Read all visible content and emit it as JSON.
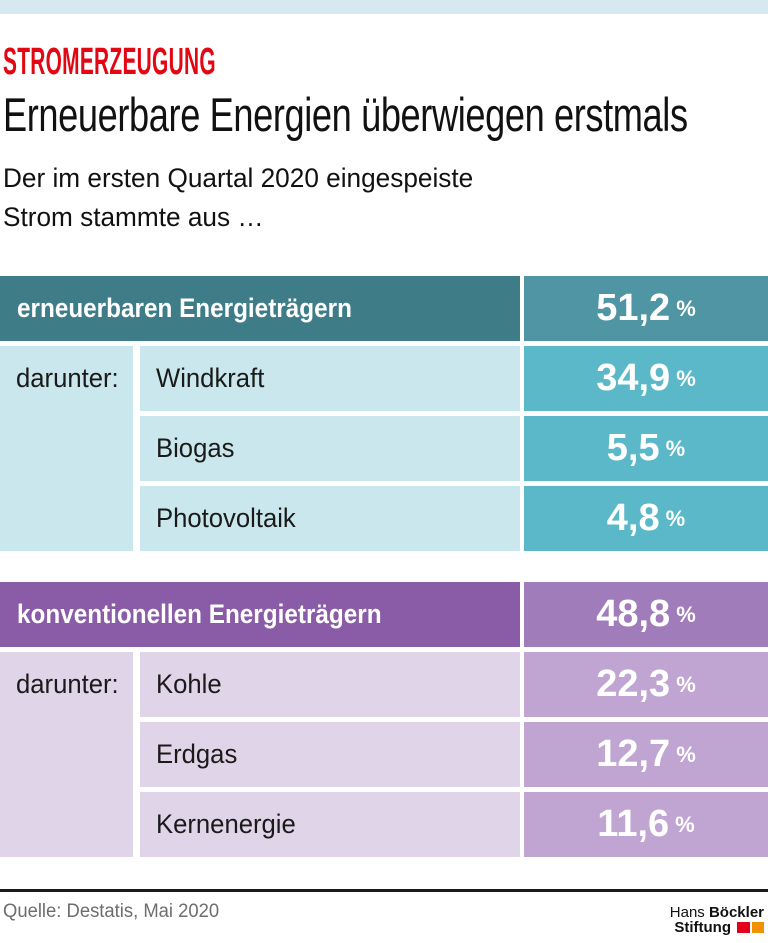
{
  "colors": {
    "topbar_bg": "#D7E9F0",
    "kicker_red": "#E30613",
    "teal_dark": "#3E7D87",
    "teal_header_value": "#4F95A3",
    "teal_row_value": "#5BB8C8",
    "teal_light": "#C9E7EC",
    "purple_dark": "#8A5BA6",
    "purple_header_value": "#A07CBA",
    "purple_row_value": "#C0A5D2",
    "purple_light": "#E0D5E8",
    "rule_dark": "#1A1A1A",
    "source_gray": "#6D6D6D",
    "logo_red": "#E2001A",
    "logo_orange": "#F29100"
  },
  "header": {
    "kicker": "STROMERZEUGUNG",
    "title": "Erneuerbare Energien überwiegen erstmals",
    "subtitle_line1": "Der im ersten Quartal 2020 eingespeiste",
    "subtitle_line2": "Strom stammte aus …"
  },
  "tables": [
    {
      "header": {
        "label": "erneuerbaren Energieträgern",
        "value": "51,2",
        "unit": "%"
      },
      "row_prefix": "darunter:",
      "rows": [
        {
          "label": "Windkraft",
          "value": "34,9",
          "unit": "%"
        },
        {
          "label": "Biogas",
          "value": "5,5",
          "unit": "%"
        },
        {
          "label": "Photovoltaik",
          "value": "4,8",
          "unit": "%"
        }
      ]
    },
    {
      "header": {
        "label": "konventionellen Energieträgern",
        "value": "48,8",
        "unit": "%"
      },
      "row_prefix": "darunter:",
      "rows": [
        {
          "label": "Kohle",
          "value": "22,3",
          "unit": "%"
        },
        {
          "label": "Erdgas",
          "value": "12,7",
          "unit": "%"
        },
        {
          "label": "Kernenergie",
          "value": "11,6",
          "unit": "%"
        }
      ]
    }
  ],
  "footer": {
    "source": "Quelle: Destatis, Mai 2020",
    "logo": {
      "line1_regular": "Hans",
      "line1_bold": "Böckler",
      "line2_bold": "Stiftung"
    }
  },
  "chart_data": {
    "type": "table",
    "kicker": "STROMERZEUGUNG",
    "title": "Erneuerbare Energien überwiegen erstmals",
    "subtitle": "Der im ersten Quartal 2020 eingespeiste Strom stammte aus …",
    "unit": "%",
    "groups": [
      {
        "label": "erneuerbaren Energieträgern",
        "value": 51.2,
        "children": [
          {
            "label": "Windkraft",
            "value": 34.9
          },
          {
            "label": "Biogas",
            "value": 5.5
          },
          {
            "label": "Photovoltaik",
            "value": 4.8
          }
        ]
      },
      {
        "label": "konventionellen Energieträgern",
        "value": 48.8,
        "children": [
          {
            "label": "Kohle",
            "value": 22.3
          },
          {
            "label": "Erdgas",
            "value": 12.7
          },
          {
            "label": "Kernenergie",
            "value": 11.6
          }
        ]
      }
    ],
    "source": "Quelle: Destatis, Mai 2020"
  }
}
